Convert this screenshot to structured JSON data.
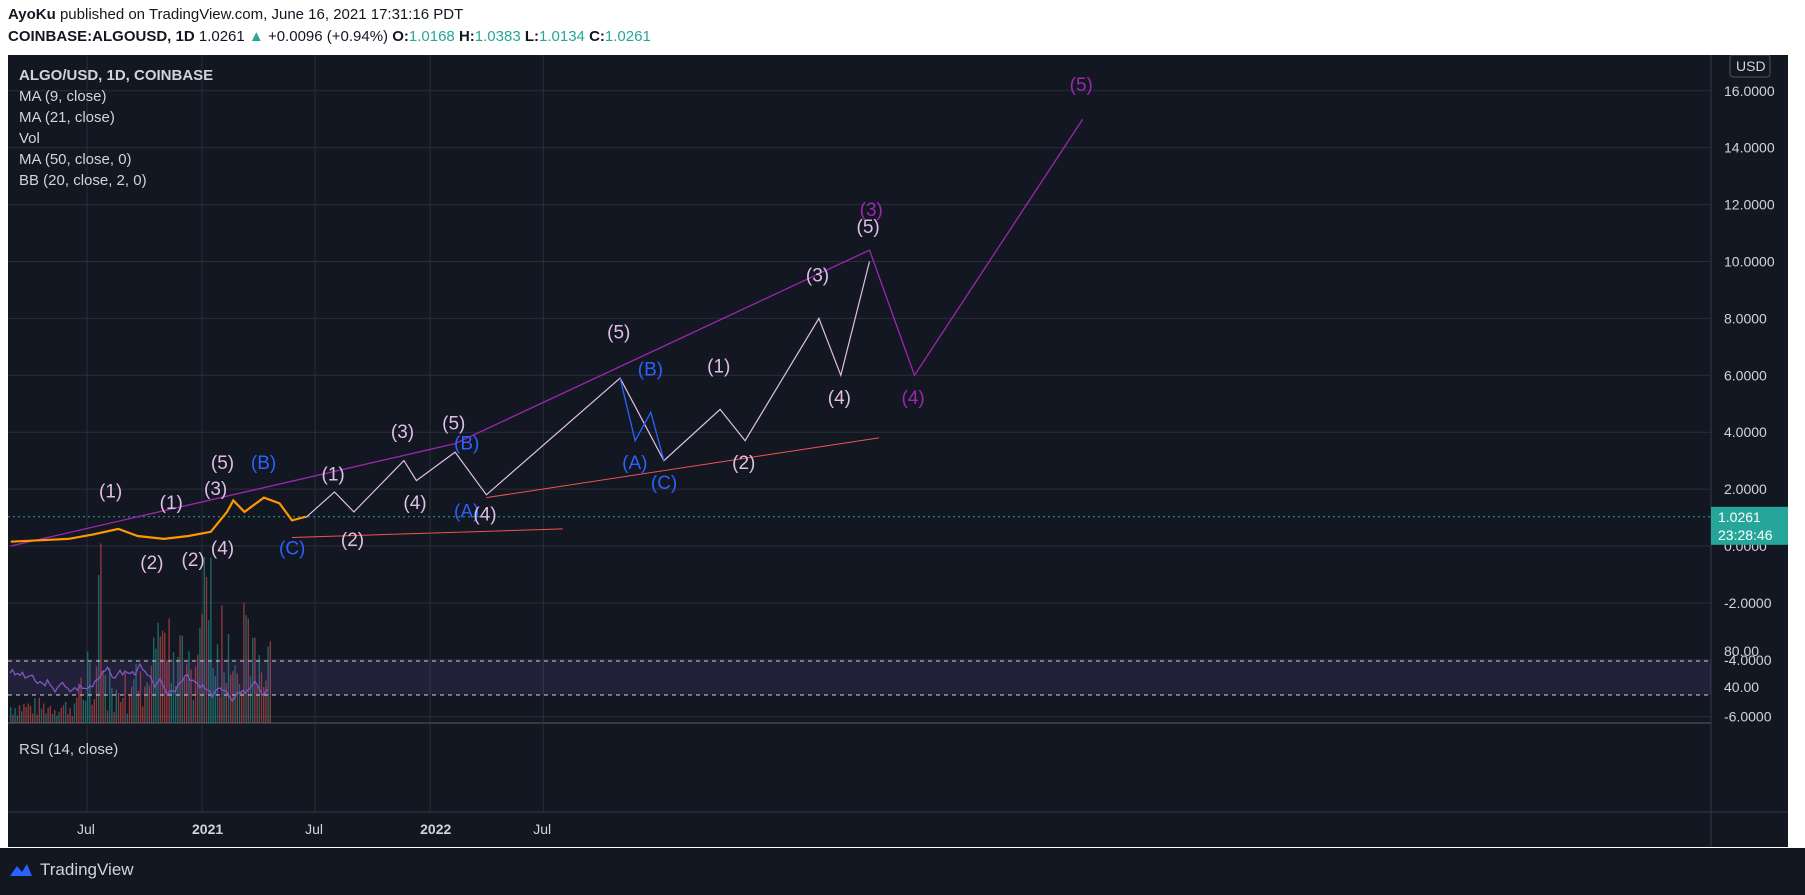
{
  "header": {
    "author": "AyoKu",
    "published": "published on TradingView.com, June 16, 2021 17:31:16 PDT",
    "symbol": "COINBASE:ALGOUSD, 1D",
    "last": "1.0261",
    "change": "+0.0096 (+0.94%)",
    "o_label": "O:",
    "o": "1.0168",
    "h_label": "H:",
    "h": "1.0383",
    "l_label": "L:",
    "l": "1.0134",
    "c_label": "C:",
    "c": "1.0261"
  },
  "legend": {
    "symbol": "ALGO/USD, 1D, COINBASE",
    "studies": [
      "MA (9, close)",
      "MA (21, close)",
      "Vol",
      "MA (50, close, 0)",
      "BB (20, close, 2, 0)"
    ]
  },
  "price_axis": {
    "currency": "USD",
    "price_label": "1.0261",
    "countdown": "23:28:46"
  },
  "rsi": {
    "title": "RSI (14, close)"
  },
  "footer": {
    "brand": "TradingView"
  },
  "colors": {
    "background": "#131722",
    "grid": "#2a2e39",
    "text": "#d1d4dc",
    "accent_green": "#26a69a",
    "wave_white": "#e1bee7",
    "wave_blue": "#2962ff",
    "wave_purple": "#9c27b0",
    "trend_red": "#ef5350",
    "rsi_line": "#7e57c2"
  },
  "chart_data": {
    "type": "line",
    "title": "ALGO/USD, 1D, COINBASE",
    "xlabel": "",
    "ylabel": "USD",
    "ylim": [
      -6.5,
      16.5
    ],
    "y_ticks": [
      "16.0000",
      "14.0000",
      "12.0000",
      "10.0000",
      "8.0000",
      "6.0000",
      "4.0000",
      "2.0000",
      "0.0000",
      "-2.0000",
      "-4.0000",
      "-6.0000"
    ],
    "x_ticks": [
      "Jul",
      "2021",
      "Jul",
      "2022",
      "Jul"
    ],
    "current_price": 1.0261,
    "rsi_ticks": [
      "80.00",
      "40.00"
    ],
    "rsi_bands": [
      70,
      30
    ],
    "price_series": [
      {
        "x": "2020-03-01",
        "y": 0.15
      },
      {
        "x": "2020-04-15",
        "y": 0.2
      },
      {
        "x": "2020-06-01",
        "y": 0.25
      },
      {
        "x": "2020-07-10",
        "y": 0.4
      },
      {
        "x": "2020-08-20",
        "y": 0.6
      },
      {
        "x": "2020-09-20",
        "y": 0.35
      },
      {
        "x": "2020-11-01",
        "y": 0.25
      },
      {
        "x": "2020-12-10",
        "y": 0.35
      },
      {
        "x": "2021-01-15",
        "y": 0.5
      },
      {
        "x": "2021-02-10",
        "y": 1.2
      },
      {
        "x": "2021-02-20",
        "y": 1.6
      },
      {
        "x": "2021-03-10",
        "y": 1.2
      },
      {
        "x": "2021-04-10",
        "y": 1.7
      },
      {
        "x": "2021-05-05",
        "y": 1.5
      },
      {
        "x": "2021-05-25",
        "y": 0.9
      },
      {
        "x": "2021-06-16",
        "y": 1.03
      }
    ],
    "wave_counts": {
      "white": [
        {
          "x": "2021-06-16",
          "y": 1.0
        },
        {
          "x": "2021-08-01",
          "y": 1.9
        },
        {
          "x": "2021-09-01",
          "y": 1.2
        },
        {
          "x": "2021-11-20",
          "y": 3.0
        },
        {
          "x": "2021-12-10",
          "y": 2.3
        },
        {
          "x": "2022-02-10",
          "y": 3.3
        },
        {
          "x": "2022-04-01",
          "y": 1.8
        },
        {
          "x": "2022-11-01",
          "y": 5.9
        },
        {
          "x": "2023-01-10",
          "y": 3.0
        },
        {
          "x": "2023-04-10",
          "y": 4.8
        },
        {
          "x": "2023-05-20",
          "y": 3.7
        },
        {
          "x": "2023-09-15",
          "y": 8.0
        },
        {
          "x": "2023-10-20",
          "y": 6.0
        },
        {
          "x": "2023-12-05",
          "y": 10.0
        }
      ],
      "blue_abc": [
        {
          "x": "2022-11-01",
          "y": 5.9
        },
        {
          "x": "2022-11-25",
          "y": 3.7
        },
        {
          "x": "2022-12-20",
          "y": 4.7
        },
        {
          "x": "2023-01-10",
          "y": 3.0
        }
      ],
      "purple": [
        {
          "x": "2020-03-01",
          "y": 0.0
        },
        {
          "x": "2022-02-10",
          "y": 3.6
        },
        {
          "x": "2023-12-05",
          "y": 10.4
        },
        {
          "x": "2024-02-15",
          "y": 6.0
        },
        {
          "x": "2024-11-10",
          "y": 15.0
        }
      ]
    },
    "wave_labels": [
      {
        "text": "(1)",
        "color": "white",
        "x": "2020-08-10",
        "y": 1.7
      },
      {
        "text": "(2)",
        "color": "white",
        "x": "2020-10-15",
        "y": -0.8
      },
      {
        "text": "(1)",
        "color": "white",
        "x": "2020-11-15",
        "y": 1.3
      },
      {
        "text": "(2)",
        "color": "white",
        "x": "2020-12-20",
        "y": -0.7
      },
      {
        "text": "(3)",
        "color": "white",
        "x": "2021-01-25",
        "y": 1.8
      },
      {
        "text": "(5)",
        "color": "white",
        "x": "2021-02-05",
        "y": 2.7
      },
      {
        "text": "(4)",
        "color": "white",
        "x": "2021-02-05",
        "y": -0.3
      },
      {
        "text": "(B)",
        "color": "blue",
        "x": "2021-04-10",
        "y": 2.7
      },
      {
        "text": "(C)",
        "color": "blue",
        "x": "2021-05-25",
        "y": -0.3
      },
      {
        "text": "(1)",
        "color": "white",
        "x": "2021-08-01",
        "y": 2.3
      },
      {
        "text": "(2)",
        "color": "white",
        "x": "2021-09-01",
        "y": 0.0
      },
      {
        "text": "(3)",
        "color": "white",
        "x": "2021-11-20",
        "y": 3.8
      },
      {
        "text": "(4)",
        "color": "white",
        "x": "2021-12-10",
        "y": 1.3
      },
      {
        "text": "(5)",
        "color": "white",
        "x": "2022-02-10",
        "y": 4.1
      },
      {
        "text": "(B)",
        "color": "blue",
        "x": "2022-03-01",
        "y": 3.4
      },
      {
        "text": "(A)",
        "color": "blue",
        "x": "2022-03-01",
        "y": 1.0
      },
      {
        "text": "(4)",
        "color": "white",
        "x": "2022-04-01",
        "y": 0.9
      },
      {
        "text": "(5)",
        "color": "white",
        "x": "2022-11-01",
        "y": 7.3
      },
      {
        "text": "(B)",
        "color": "blue",
        "x": "2022-12-20",
        "y": 6.0
      },
      {
        "text": "(A)",
        "color": "blue",
        "x": "2022-11-25",
        "y": 2.7
      },
      {
        "text": "(C)",
        "color": "blue",
        "x": "2023-01-10",
        "y": 2.0
      },
      {
        "text": "(1)",
        "color": "white",
        "x": "2023-04-10",
        "y": 6.1
      },
      {
        "text": "(2)",
        "color": "white",
        "x": "2023-05-20",
        "y": 2.7
      },
      {
        "text": "(3)",
        "color": "white",
        "x": "2023-09-15",
        "y": 9.3
      },
      {
        "text": "(4)",
        "color": "white",
        "x": "2023-10-20",
        "y": 5.0
      },
      {
        "text": "(5)",
        "color": "white",
        "x": "2023-12-05",
        "y": 11.0
      },
      {
        "text": "(3)",
        "color": "purple",
        "x": "2023-12-10",
        "y": 11.6
      },
      {
        "text": "(4)",
        "color": "purple",
        "x": "2024-02-15",
        "y": 5.0
      },
      {
        "text": "(5)",
        "color": "purple",
        "x": "2024-11-10",
        "y": 16.0
      }
    ]
  }
}
